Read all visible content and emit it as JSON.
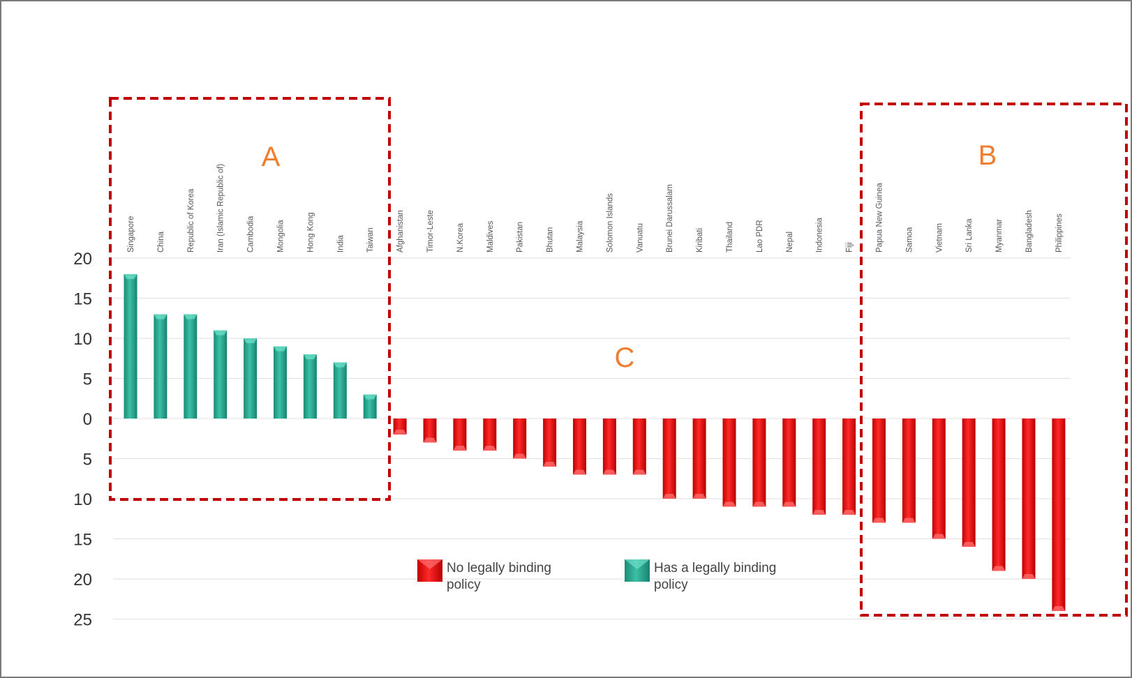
{
  "chart_data": {
    "type": "bar",
    "title": "",
    "xlabel": "",
    "ylabel": "",
    "ylim": [
      -25,
      20
    ],
    "yticks": [
      20,
      15,
      10,
      5,
      0,
      -5,
      -10,
      -15,
      -20,
      -25
    ],
    "ytick_labels": [
      "20",
      "15",
      "10",
      "5",
      "0",
      "5",
      "10",
      "15",
      "20",
      "25"
    ],
    "grid": true,
    "categories": [
      "Singapore",
      "China",
      "Republic of Korea",
      "Iran (Islamic Republic of)",
      "Cambodia",
      "Mongolia",
      "Hong Kong",
      "India",
      "Taiwan",
      "Afghanistan",
      "Timor-Leste",
      "N.Korea",
      "Maldives",
      "Pakistan",
      "Bhutan",
      "Malaysia",
      "Solomon Islands",
      "Vanuatu",
      "Brunei Darussalam",
      "Kiribati",
      "Thailand",
      "Lao PDR",
      "Nepal",
      "Indonesia",
      "Fiji",
      "Papua New Guinea",
      "Samoa",
      "Vietnam",
      "Sri Lanka",
      "Myanmar",
      "Bangladesh",
      "Philippines"
    ],
    "values": [
      18,
      13,
      13,
      11,
      10,
      9,
      8,
      7,
      3,
      -2,
      -3,
      -4,
      -4,
      -5,
      -6,
      -7,
      -7,
      -7,
      -10,
      -10,
      -11,
      -11,
      -11,
      -12,
      -12,
      -13,
      -13,
      -15,
      -16,
      -19,
      -20,
      -24
    ],
    "series": [
      {
        "name": "Has a legally binding policy",
        "color": "#2aa890",
        "categories": [
          "Singapore",
          "China",
          "Republic of Korea",
          "Iran (Islamic Republic of)",
          "Cambodia",
          "Mongolia",
          "Hong Kong",
          "India",
          "Taiwan"
        ]
      },
      {
        "name": "No legally binding policy",
        "color": "#e01010",
        "categories": [
          "Afghanistan",
          "Timor-Leste",
          "N.Korea",
          "Maldives",
          "Pakistan",
          "Bhutan",
          "Malaysia",
          "Solomon Islands",
          "Vanuatu",
          "Brunei Darussalam",
          "Kiribati",
          "Thailand",
          "Lao PDR",
          "Nepal",
          "Indonesia",
          "Fiji",
          "Papua New Guinea",
          "Samoa",
          "Vietnam",
          "Sri Lanka",
          "Myanmar",
          "Bangladesh",
          "Philippines"
        ]
      }
    ],
    "legend": {
      "placement": "bottom-center",
      "items": [
        {
          "line1": "No legally binding",
          "line2": "policy",
          "color": "#e01010"
        },
        {
          "line1": "Has a legally binding",
          "line2": "policy",
          "color": "#2aa890"
        }
      ]
    },
    "annotations": [
      {
        "label": "A",
        "color": "#f07e2e",
        "style": "dashed-box",
        "box_color": "#c00000"
      },
      {
        "label": "B",
        "color": "#f07e2e",
        "style": "dashed-box",
        "box_color": "#c00000"
      },
      {
        "label": "C",
        "color": "#f07e2e",
        "style": "text"
      }
    ]
  }
}
